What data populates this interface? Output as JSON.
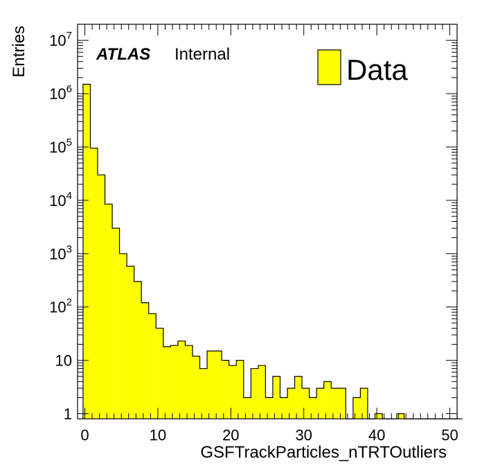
{
  "chart_data": {
    "type": "bar",
    "xlabel": "GSFTrackParticles_nTRTOutliers",
    "ylabel": "Entries",
    "yscale": "log",
    "xlim": [
      -1,
      51
    ],
    "ylim": [
      0.8,
      20000000
    ],
    "x_ticks": [
      0,
      10,
      20,
      30,
      40,
      50
    ],
    "y_ticks": [
      {
        "value": 1,
        "base": "1",
        "exp": ""
      },
      {
        "value": 10,
        "base": "10",
        "exp": ""
      },
      {
        "value": 100,
        "base": "10",
        "exp": "2"
      },
      {
        "value": 1000,
        "base": "10",
        "exp": "3"
      },
      {
        "value": 10000,
        "base": "10",
        "exp": "4"
      },
      {
        "value": 100000,
        "base": "10",
        "exp": "5"
      },
      {
        "value": 1000000,
        "base": "10",
        "exp": "6"
      },
      {
        "value": 10000000,
        "base": "10",
        "exp": "7"
      }
    ],
    "bin_edges_start": -0.25,
    "bin_width": 1.0,
    "series": [
      {
        "name": "Data",
        "color": "#ffff00",
        "values": [
          1500000,
          95000,
          30000,
          8500,
          3000,
          1000,
          580,
          300,
          120,
          75,
          40,
          18,
          19,
          23,
          19,
          12,
          7,
          15,
          15,
          10,
          8,
          10,
          2,
          7,
          8,
          2,
          5,
          2,
          3,
          5,
          3,
          2,
          3,
          4,
          3,
          3,
          0,
          2,
          3,
          0,
          1,
          0,
          0,
          1,
          0,
          0,
          0,
          0,
          0,
          0,
          0,
          0
        ]
      }
    ],
    "legend": {
      "position": "top-right",
      "entries": [
        "Data"
      ]
    },
    "grid": false
  },
  "annotation": {
    "brand": "ATLAS",
    "status": "Internal"
  }
}
